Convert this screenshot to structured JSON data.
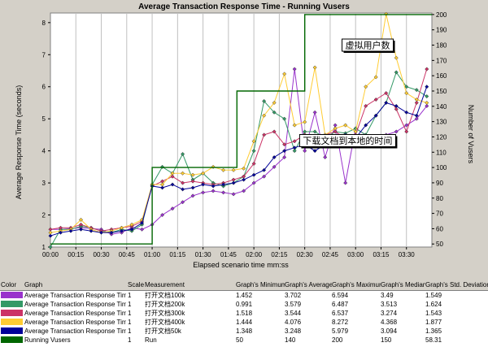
{
  "chart_data": {
    "type": "line",
    "title": "Average Transaction Response Time - Running Vusers",
    "xlabel": "Elapsed scenario time mm:ss",
    "ylabel": "Average Response Time (seconds)",
    "y2label": "Number of Vusers",
    "x_ticks": [
      "00:00",
      "00:15",
      "00:30",
      "00:45",
      "01:00",
      "01:15",
      "01:30",
      "01:45",
      "02:00",
      "02:15",
      "02:30",
      "02:45",
      "03:00",
      "03:15",
      "03:30"
    ],
    "xlim": [
      0,
      225
    ],
    "ylim": [
      1,
      8.3
    ],
    "y_ticks": [
      1,
      2,
      3,
      4,
      5,
      6,
      7,
      8
    ],
    "y2lim": [
      48,
      201
    ],
    "y2_ticks": [
      50,
      60,
      70,
      80,
      90,
      100,
      110,
      120,
      130,
      140,
      150,
      160,
      170,
      180,
      190,
      200
    ],
    "grid": true,
    "series": [
      {
        "name": "Average Transaction Response Time 打开文档100k",
        "color": "#9933cc",
        "axis": "left",
        "x": [
          0,
          6,
          18,
          30,
          36,
          42,
          48,
          54,
          60,
          66,
          72,
          78,
          84,
          90,
          96,
          102,
          108,
          114,
          120,
          126,
          132,
          138,
          144,
          150,
          156,
          162,
          168,
          174,
          180,
          186,
          192,
          198,
          204,
          210,
          216,
          222
        ],
        "y": [
          1.55,
          1.55,
          1.6,
          1.55,
          1.4,
          1.45,
          1.6,
          1.55,
          1.7,
          2.0,
          2.2,
          2.4,
          2.6,
          2.7,
          2.75,
          2.7,
          2.65,
          2.75,
          3.0,
          3.2,
          3.5,
          3.8,
          6.55,
          4.0,
          5.2,
          3.8,
          4.8,
          3.0,
          4.7,
          4.5,
          4.4,
          4.5,
          4.6,
          4.8,
          5.0,
          5.4
        ]
      },
      {
        "name": "Average Transaction Response Time 打开文档200k",
        "color": "#339966",
        "axis": "left",
        "x": [
          0,
          6,
          12,
          18,
          24,
          30,
          36,
          42,
          48,
          54,
          60,
          66,
          72,
          78,
          84,
          90,
          96,
          102,
          108,
          114,
          120,
          126,
          132,
          138,
          144,
          150,
          156,
          162,
          168,
          174,
          180,
          186,
          192,
          198,
          204,
          210,
          216,
          222
        ],
        "y": [
          1.0,
          1.55,
          1.55,
          1.65,
          1.6,
          1.5,
          1.45,
          1.55,
          1.5,
          1.7,
          2.95,
          3.5,
          3.3,
          3.9,
          3.1,
          3.3,
          3.0,
          2.9,
          3.0,
          3.2,
          4.0,
          5.55,
          5.2,
          5.0,
          4.0,
          4.6,
          4.6,
          4.4,
          4.6,
          4.55,
          4.7,
          4.5,
          5.1,
          5.5,
          6.45,
          6.0,
          5.9,
          5.7
        ]
      },
      {
        "name": "Average Transaction Response Time 打开文档300k",
        "color": "#cc3366",
        "axis": "left",
        "x": [
          0,
          6,
          12,
          18,
          24,
          30,
          36,
          42,
          48,
          54,
          60,
          66,
          72,
          78,
          84,
          90,
          96,
          102,
          108,
          114,
          120,
          126,
          132,
          138,
          144,
          150,
          156,
          162,
          168,
          174,
          180,
          186,
          192,
          198,
          204,
          210,
          216,
          222
        ],
        "y": [
          1.55,
          1.6,
          1.6,
          1.7,
          1.6,
          1.5,
          1.55,
          1.6,
          1.65,
          1.8,
          2.9,
          3.05,
          3.2,
          3.0,
          3.05,
          3.0,
          2.95,
          3.0,
          3.1,
          3.2,
          3.6,
          4.5,
          4.6,
          4.2,
          4.3,
          4.5,
          4.2,
          4.5,
          4.6,
          4.4,
          4.5,
          5.4,
          5.6,
          5.8,
          5.3,
          4.6,
          5.5,
          6.55
        ]
      },
      {
        "name": "Average Transaction Response Time 打开文档400k",
        "color": "#ffcc33",
        "axis": "left",
        "x": [
          0,
          6,
          12,
          18,
          24,
          30,
          36,
          42,
          48,
          54,
          60,
          66,
          72,
          78,
          84,
          90,
          96,
          102,
          108,
          114,
          120,
          126,
          132,
          138,
          144,
          150,
          156,
          162,
          168,
          174,
          180,
          186,
          192,
          198,
          204,
          210,
          216,
          222
        ],
        "y": [
          1.45,
          1.5,
          1.55,
          1.85,
          1.55,
          1.45,
          1.5,
          1.6,
          1.7,
          1.85,
          2.95,
          2.95,
          3.3,
          3.3,
          3.25,
          3.3,
          3.5,
          3.4,
          3.4,
          3.45,
          4.3,
          5.1,
          5.5,
          6.4,
          4.8,
          4.9,
          6.6,
          4.5,
          4.7,
          4.8,
          4.6,
          6.0,
          6.3,
          8.27,
          6.9,
          5.8,
          5.6,
          5.5
        ]
      },
      {
        "name": "Average Transaction Response Time 打开文档50k",
        "color": "#000099",
        "axis": "left",
        "x": [
          0,
          6,
          12,
          18,
          24,
          30,
          36,
          42,
          48,
          54,
          60,
          66,
          72,
          78,
          84,
          90,
          96,
          102,
          108,
          114,
          120,
          126,
          132,
          138,
          144,
          150,
          156,
          162,
          168,
          174,
          180,
          186,
          192,
          198,
          204,
          210,
          216,
          222
        ],
        "y": [
          1.35,
          1.45,
          1.5,
          1.55,
          1.5,
          1.45,
          1.45,
          1.5,
          1.55,
          1.75,
          2.9,
          2.85,
          2.95,
          2.8,
          2.85,
          2.95,
          2.9,
          2.95,
          3.0,
          3.1,
          3.25,
          3.4,
          3.8,
          4.0,
          4.1,
          4.2,
          4.0,
          4.2,
          4.3,
          4.5,
          4.4,
          4.8,
          5.1,
          5.5,
          5.4,
          5.2,
          5.1,
          6.0
        ]
      },
      {
        "name": "Running Vusers",
        "color": "#006600",
        "axis": "right",
        "step": true,
        "x": [
          0,
          20,
          40,
          60,
          60,
          80,
          100,
          110,
          110,
          130,
          150,
          150,
          170,
          190,
          200,
          210,
          225
        ],
        "y": [
          50,
          50,
          50,
          50,
          100,
          100,
          100,
          100,
          150,
          150,
          150,
          200,
          200,
          200,
          200,
          200,
          200
        ]
      }
    ],
    "annotations": [
      {
        "text": "虚拟用户数",
        "x": 172,
        "y2": 180
      },
      {
        "text": "下载文档到本地的时间",
        "x": 147,
        "y": 4.32
      }
    ]
  },
  "legend": {
    "headers": [
      "Color",
      "Graph",
      "Scale",
      "Measurement",
      "Graph's Minimum",
      "Graph's Average",
      "Graph's Maximum",
      "Graph's Median",
      "Graph's Std. Deviation"
    ],
    "rows": [
      {
        "color": "#9933cc",
        "graph": "Average Transaction Response Time",
        "scale": "1",
        "measurement": "打开文档100k",
        "min": "1.452",
        "avg": "3.702",
        "max": "6.594",
        "median": "3.49",
        "std": "1.549"
      },
      {
        "color": "#339966",
        "graph": "Average Transaction Response Time",
        "scale": "1",
        "measurement": "打开文档200k",
        "min": "0.991",
        "avg": "3.579",
        "max": "6.487",
        "median": "3.513",
        "std": "1.624"
      },
      {
        "color": "#cc3366",
        "graph": "Average Transaction Response Time",
        "scale": "1",
        "measurement": "打开文档300k",
        "min": "1.518",
        "avg": "3.544",
        "max": "6.537",
        "median": "3.274",
        "std": "1.543"
      },
      {
        "color": "#ffcc33",
        "graph": "Average Transaction Response Time",
        "scale": "1",
        "measurement": "打开文档400k",
        "min": "1.444",
        "avg": "4.076",
        "max": "8.272",
        "median": "4.368",
        "std": "1.877"
      },
      {
        "color": "#000099",
        "graph": "Average Transaction Response Time",
        "scale": "1",
        "measurement": "打开文档50k",
        "min": "1.348",
        "avg": "3.248",
        "max": "5.979",
        "median": "3.094",
        "std": "1.365"
      },
      {
        "color": "#006600",
        "graph": "Running Vusers",
        "scale": "1",
        "measurement": "Run",
        "min": "50",
        "avg": "140",
        "max": "200",
        "median": "150",
        "std": "58.31"
      }
    ]
  }
}
